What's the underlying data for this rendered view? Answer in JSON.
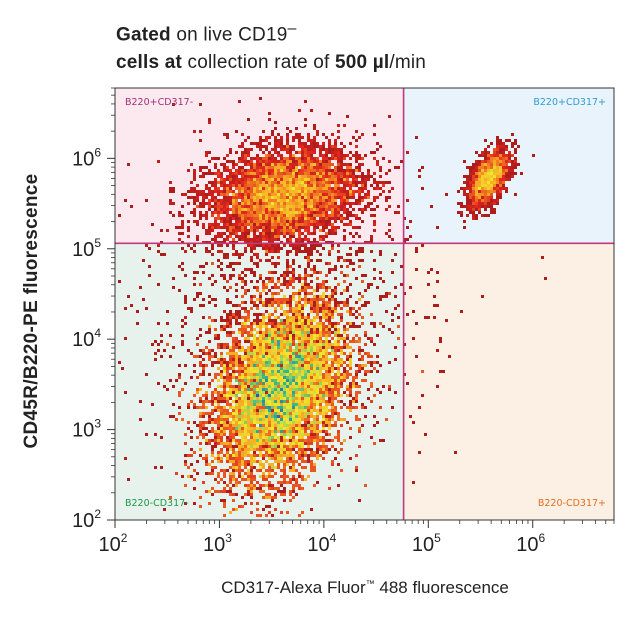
{
  "title_line1_parts": [
    "Gated",
    " on live CD19"
  ],
  "title_line1_sup": "–",
  "title_line2_parts": [
    "cells at",
    " collection rate of ",
    "500 µl",
    "/min"
  ],
  "colors": {
    "gate_line": "#c0397f",
    "q_tl_fill": "#fbe9ef",
    "q_tr_fill": "#e9f3fb",
    "q_bl_fill": "#e8f2ec",
    "q_br_fill": "#fcf0e4",
    "q_tl_label": "#a3307a",
    "q_tr_label": "#2e9cd6",
    "q_bl_label": "#1b9a4a",
    "q_br_label": "#e0701d"
  },
  "chart_data": {
    "type": "scatter",
    "subtype": "flow-cytometry-density-plot",
    "xlabel": "CD317-Alexa Fluor™ 488 fluorescence",
    "xlabel_main": "CD317-Alexa Fluor",
    "xlabel_tm": "™",
    "xlabel_tail": " 488 fluorescence",
    "ylabel": "CD45R/B220-PE fluorescence",
    "xscale": "log",
    "yscale": "log",
    "xlim": [
      100,
      6000000
    ],
    "ylim": [
      100,
      6000000
    ],
    "x_ticks": [
      {
        "value": 100,
        "label": "10",
        "exp": "2"
      },
      {
        "value": 1000,
        "label": "10",
        "exp": "3"
      },
      {
        "value": 10000,
        "label": "10",
        "exp": "4"
      },
      {
        "value": 100000,
        "label": "10",
        "exp": "5"
      },
      {
        "value": 1000000,
        "label": "10",
        "exp": "6"
      }
    ],
    "y_ticks": [
      {
        "value": 100,
        "label": "10",
        "exp": "2"
      },
      {
        "value": 1000,
        "label": "10",
        "exp": "3"
      },
      {
        "value": 10000,
        "label": "10",
        "exp": "4"
      },
      {
        "value": 100000,
        "label": "10",
        "exp": "5"
      },
      {
        "value": 1000000,
        "label": "10",
        "exp": "6"
      }
    ],
    "gates": {
      "x": 58000,
      "y": 115000
    },
    "quadrants": [
      {
        "id": "tl",
        "label": "B220+CD317-"
      },
      {
        "id": "tr",
        "label": "B220+CD317+"
      },
      {
        "id": "bl",
        "label": "B220-CD317-"
      },
      {
        "id": "br",
        "label": "B220-CD317+"
      }
    ],
    "populations": [
      {
        "x": 3800,
        "y": 2800,
        "sx": 0.32,
        "sy": 0.5,
        "rho": 0.3,
        "weight": 0.74
      },
      {
        "x": 4200,
        "y": 400000,
        "sx": 0.36,
        "sy": 0.26,
        "rho": 0.2,
        "weight": 0.19
      },
      {
        "x": 380000,
        "y": 600000,
        "sx": 0.1,
        "sy": 0.16,
        "rho": 0.55,
        "weight": 0.04
      },
      {
        "x": 4000,
        "y": 20000,
        "sx": 0.7,
        "sy": 0.85,
        "rho": 0.1,
        "weight": 0.03
      }
    ],
    "color_scale": [
      "#9a1b1b",
      "#e0241e",
      "#f7a524",
      "#f2e92e",
      "#2fb38a",
      "#2a55c8"
    ]
  }
}
